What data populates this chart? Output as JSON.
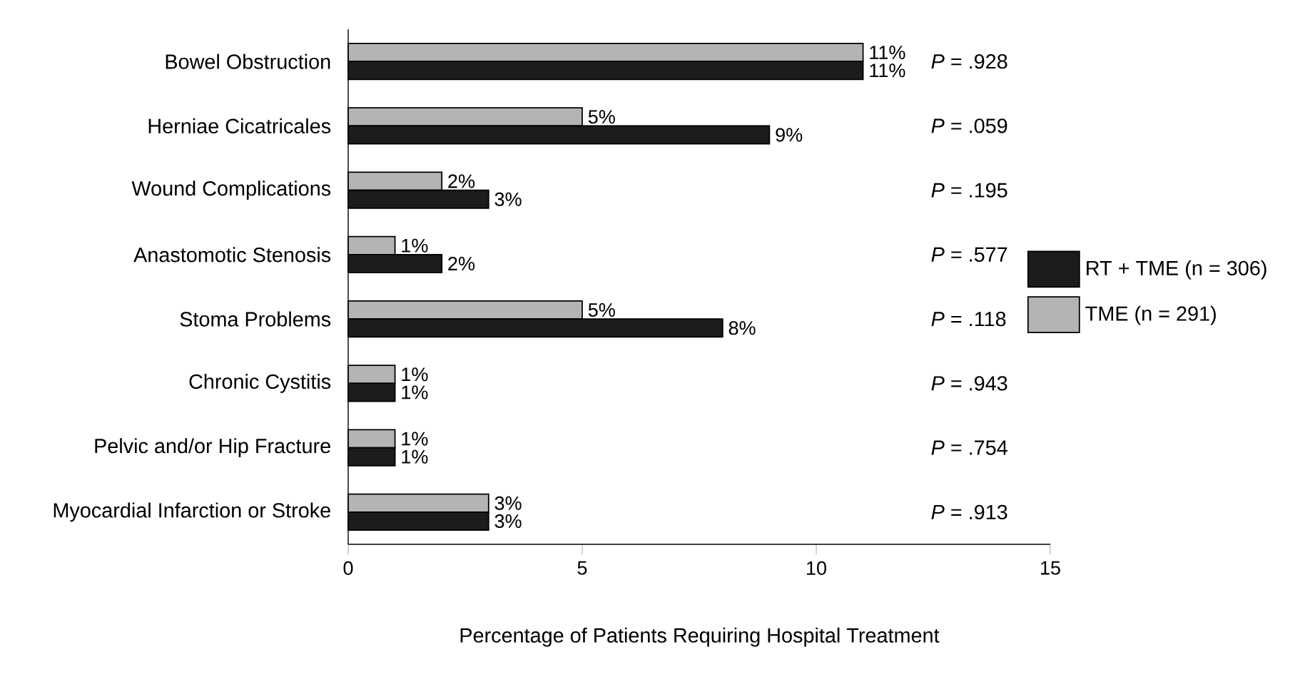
{
  "chart_data": {
    "type": "bar",
    "orientation": "horizontal",
    "xlabel": "Percentage of Patients Requiring Hospital Treatment",
    "categories": [
      "Bowel Obstruction",
      "Herniae Cicatricales",
      "Wound Complications",
      "Anastomotic Stenosis",
      "Stoma Problems",
      "Chronic Cystitis",
      "Pelvic and/or Hip Fracture",
      "Myocardial Infarction or Stroke"
    ],
    "series": [
      {
        "name": "TME (n = 291)",
        "color": "#b4b4b4",
        "values": [
          11,
          5,
          2,
          1,
          5,
          1,
          1,
          3
        ],
        "value_labels": [
          "11%",
          "5%",
          "2%",
          "1%",
          "5%",
          "1%",
          "1%",
          "3%"
        ]
      },
      {
        "name": "RT + TME (n = 306)",
        "color": "#1c1c1c",
        "values": [
          11,
          9,
          3,
          2,
          8,
          1,
          1,
          3
        ],
        "value_labels": [
          "11%",
          "9%",
          "3%",
          "2%",
          "8%",
          "1%",
          "1%",
          "3%"
        ]
      }
    ],
    "xlim": [
      0,
      15
    ],
    "xticks": [
      0,
      5,
      10,
      15
    ],
    "legend": "right",
    "annotations": [
      "*P* = .928",
      "*P* = .059",
      "*P* = .195",
      "*P* = .577",
      "*P* = .118",
      "*P* = .943",
      "*P* = .754",
      "*P* = .913"
    ]
  }
}
